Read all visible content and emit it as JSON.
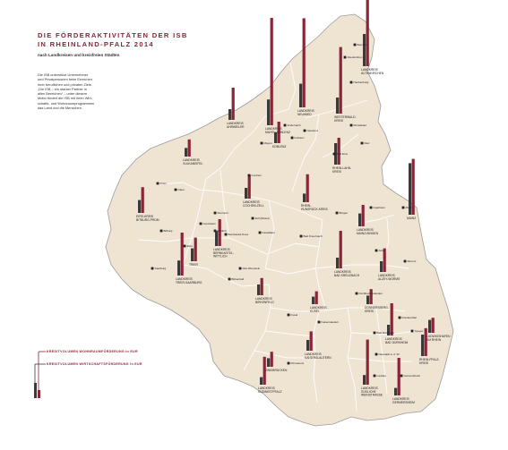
{
  "title_line1": "Die Förderaktivitäten der ISB",
  "title_line2": "in Rheinland-Pfalz 2014",
  "subtitle": "nach Landkreisen und kreisfreien Städten",
  "intro_lines": [
    "Die ISB unterstützt Unternehmer",
    "und Privatpersonen beim Erreichen",
    "ihrer beruflichen und privaten Ziele.",
    "„Die ISB – ein starker Partner in",
    "allen Bereichen“ – unter diesem",
    "Motto fördert die ISB mit ihren Wirt-",
    "schafts- und Wohnraumprogrammen",
    "das Land und die Menschen."
  ],
  "legend": {
    "housing": "KREDITVOLUMEN WOHNRAUMFÖRDERUNG in EUR",
    "business": "KREDITVOLUMEN WIRTSCHAFTSFÖRDERUNG in EUR"
  },
  "colors": {
    "map_fill": "#efe3d2",
    "border": "#9b9b9b",
    "housing_bar": "#8a2537",
    "business_bar": "#3a3a3a",
    "title": "#8a2537"
  },
  "districts": [
    {
      "name": "LANDKREIS ALTENKIRCHEN",
      "label": [
        "LANDKREIS",
        "ALTENKIRCHEN"
      ],
      "housing": 1.0,
      "business": 0.3
    },
    {
      "name": "LANDKREIS NEUWIED",
      "label": [
        "LANDKREIS",
        "NEUWIED"
      ],
      "housing": 0.83,
      "business": 0.22
    },
    {
      "name": "WESTERWALD-KREIS",
      "label": [
        "WESTERWALD-",
        "KREIS"
      ],
      "housing": 0.62,
      "business": 0.15
    },
    {
      "name": "LANDKREIS AHRWEILER",
      "label": [
        "LANDKREIS",
        "AHRWEILER"
      ],
      "housing": 0.3,
      "business": 0.1
    },
    {
      "name": "LANDKREIS MAYEN-KOBLENZ",
      "label": [
        "LANDKREIS",
        "MAYEN-KOBLENZ"
      ],
      "housing": 1.0,
      "business": 0.24
    },
    {
      "name": "LANDKREIS VULKANEIFEL",
      "label": [
        "LANDKREIS",
        "VULKANEIFEL"
      ],
      "housing": 0.16,
      "business": 0.08
    },
    {
      "name": "RHEIN-LAHN-KREIS",
      "label": [
        "RHEIN-LAHN-",
        "KREIS"
      ],
      "housing": 0.25,
      "business": 0.2
    },
    {
      "name": "LANDKREIS COCHEM-ZELL",
      "label": [
        "LANDKREIS",
        "COCHEM-ZELL"
      ],
      "housing": 0.22,
      "business": 0.1
    },
    {
      "name": "RHEIN-HUNSRÜCK-KREIS",
      "label": [
        "RHEIN-",
        "HUNSRÜCK-KREIS"
      ],
      "housing": 0.26,
      "business": 0.08
    },
    {
      "name": "EIFELKREIS BITBURG-PRÜM",
      "label": [
        "EIFELKREIS",
        "BITBURG-PRÜM"
      ],
      "housing": 0.24,
      "business": 0.12
    },
    {
      "name": "LANDKREIS BERNKASTEL-WITTLICH",
      "label": [
        "LANDKREIS",
        "BERNKASTEL-",
        "WITTLICH"
      ],
      "housing": 0.25,
      "business": 0.14
    },
    {
      "name": "LANDKREIS MAINZ-BINGEN",
      "label": [
        "LANDKREIS",
        "MAINZ-BINGEN"
      ],
      "housing": 0.2,
      "business": 0.12
    },
    {
      "name": "MAINZ",
      "label": [
        "MAINZ"
      ],
      "housing": 0.52,
      "business": 0.48
    },
    {
      "name": "LANDKREIS TRIER-SAARBURG",
      "label": [
        "LANDKREIS",
        "TRIER-SAARBURG"
      ],
      "housing": 0.4,
      "business": 0.14
    },
    {
      "name": "LANDKREIS BAD KREUZNACH",
      "label": [
        "LANDKREIS",
        "BAD KREUZNACH"
      ],
      "housing": 0.35,
      "business": 0.1
    },
    {
      "name": "LANDKREIS ALZEY-WORMS",
      "label": [
        "LANDKREIS",
        "ALZEY-WORMS"
      ],
      "housing": 0.22,
      "business": 0.1
    },
    {
      "name": "LANDKREIS BIRKENFELD",
      "label": [
        "LANDKREIS",
        "BIRKENFELD"
      ],
      "housing": 0.16,
      "business": 0.1
    },
    {
      "name": "LANDKREIS KUSEL",
      "label": [
        "LANDKREIS",
        "KUSEL"
      ],
      "housing": 0.12,
      "business": 0.07
    },
    {
      "name": "DONNERSBERG-KREIS",
      "label": [
        "DONNERSBERG-",
        "KREIS"
      ],
      "housing": 0.14,
      "business": 0.08
    },
    {
      "name": "LANDKREIS BAD DÜRKHEIM",
      "label": [
        "LANDKREIS",
        "BAD DÜRKHEIM"
      ],
      "housing": 0.3,
      "business": 0.1
    },
    {
      "name": "RHEIN-PFALZ-KREIS",
      "label": [
        "RHEIN-PFALZ-",
        "KREIS"
      ],
      "housing": 0.26,
      "business": 0.2
    },
    {
      "name": "LANDKREIS KAISERSLAUTERN",
      "label": [
        "LANDKREIS",
        "KAISERSLAUTERN"
      ],
      "housing": 0.18,
      "business": 0.1
    },
    {
      "name": "LANDKREIS SÜDWESTPFALZ",
      "label": [
        "LANDKREIS",
        "SÜDWESTPFALZ"
      ],
      "housing": 0.26,
      "business": 0.07
    },
    {
      "name": "LANDKREIS SÜDLICHE WEINSTRASSE",
      "label": [
        "LANDKREIS",
        "SÜDLICHE",
        "WEINSTRASSE"
      ],
      "housing": 0.42,
      "business": 0.09
    },
    {
      "name": "LANDKREIS GERMERSHEIM",
      "label": [
        "LANDKREIS",
        "GERMERSHEIM"
      ],
      "housing": 0.35,
      "business": 0.07
    },
    {
      "name": "LUDWIGSHAFEN AM RHEIN",
      "label": [
        "LUDWIGSHAFEN",
        "AM RHEIN"
      ],
      "housing": 0.14,
      "business": 0.12
    },
    {
      "name": "ZWEIBRÜCKEN",
      "label": [
        "ZWEIBRÜCKEN"
      ],
      "housing": 0.14,
      "business": 0.08
    },
    {
      "name": "TRIER",
      "label": [
        "TRIER"
      ],
      "housing": 0.22,
      "business": 0.12
    },
    {
      "name": "KOBLENZ",
      "label": [
        "KOBLENZ"
      ],
      "housing": 0.2,
      "business": 0.1
    }
  ],
  "cities": [
    "Betzdorf",
    "Altenkirchen",
    "Hachenburg",
    "Montabaur",
    "Neuwied",
    "Koblenz",
    "Andernach",
    "Mayen",
    "Bad Ems",
    "Diez",
    "Cochem",
    "Daun",
    "Prüm",
    "Bitburg",
    "Gerolstein",
    "Wittlich",
    "Bernkastel-Kues",
    "Simmern",
    "Zell (Mosel)",
    "Kastellaun",
    "Bingen",
    "Ingelheim",
    "Mainz",
    "Alzey",
    "Worms",
    "Bad Kreuznach",
    "Idar-Oberstein",
    "Birkenfeld",
    "Kusel",
    "Kirchheimbolanden",
    "Bad Dürkheim",
    "Neustadt a. d. W.",
    "Landau",
    "Speyer",
    "Frankenthal",
    "Pirmasens",
    "Germersheim",
    "Saarburg",
    "Eifel",
    "Kaiserslautern"
  ]
}
